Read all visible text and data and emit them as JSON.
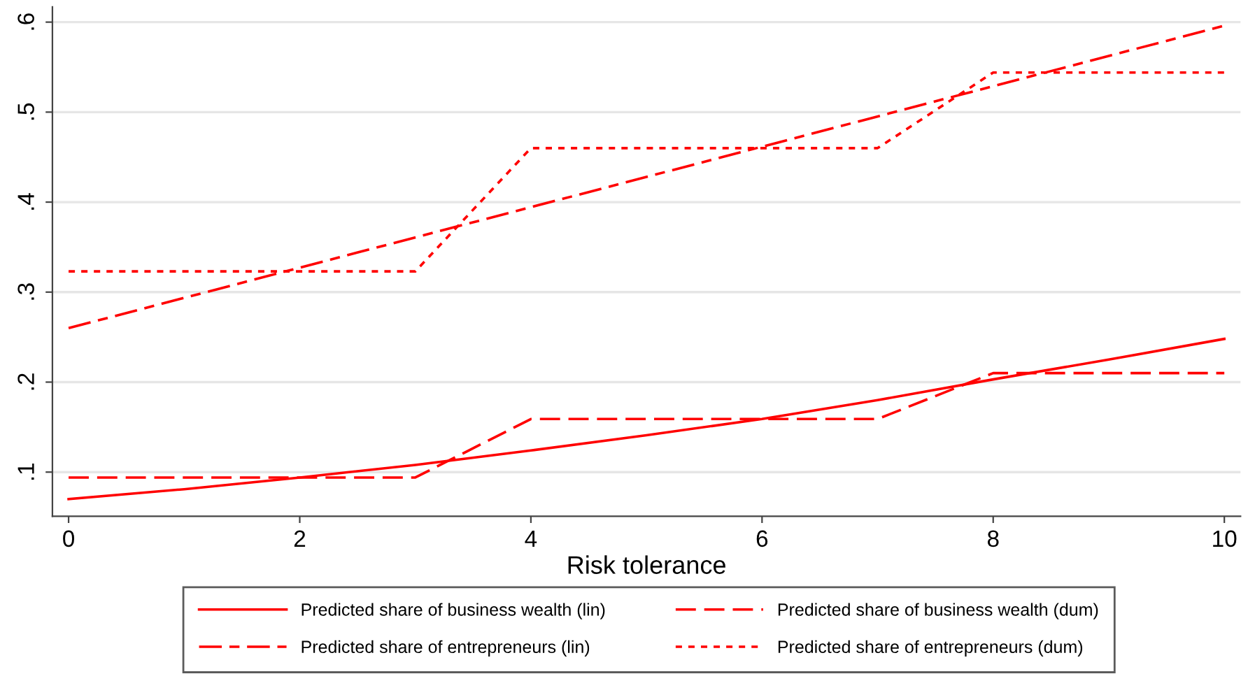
{
  "chart_data": {
    "type": "line",
    "xlabel": "Risk tolerance",
    "xlim": [
      -0.14,
      10.14
    ],
    "xticks": [
      0,
      2,
      4,
      6,
      8,
      10
    ],
    "ylim": [
      0.051,
      0.617
    ],
    "yticks": [
      {
        "value": 0.1,
        "label": ".1"
      },
      {
        "value": 0.2,
        "label": ".2"
      },
      {
        "value": 0.3,
        "label": ".3"
      },
      {
        "value": 0.4,
        "label": ".4"
      },
      {
        "value": 0.5,
        "label": ".5"
      },
      {
        "value": 0.6,
        "label": ".6"
      }
    ],
    "grid": "y",
    "legend": "bottom",
    "marker": "none",
    "series": [
      {
        "name": "Predicted share of business wealth (lin)",
        "color": "#ff0000",
        "line_style": "solid",
        "x": [
          0,
          1,
          2,
          3,
          4,
          5,
          6,
          7,
          8,
          9,
          10
        ],
        "values": [
          0.07,
          0.081,
          0.094,
          0.108,
          0.124,
          0.141,
          0.159,
          0.18,
          0.203,
          0.225,
          0.248
        ]
      },
      {
        "name": "Predicted share of business wealth (dum)",
        "color": "#ff0000",
        "line_style": "dashed",
        "x": [
          0,
          3,
          4,
          7,
          8,
          10
        ],
        "values": [
          0.094,
          0.094,
          0.159,
          0.159,
          0.21,
          0.21
        ]
      },
      {
        "name": "Predicted share of entrepreneurs (lin)",
        "color": "#ff0000",
        "line_style": "dashdot",
        "x": [
          0,
          10
        ],
        "values": [
          0.26,
          0.596
        ]
      },
      {
        "name": "Predicted share of entrepreneurs (dum)",
        "color": "#ff0000",
        "line_style": "dotted",
        "x": [
          0,
          3,
          4,
          7,
          8,
          10
        ],
        "values": [
          0.323,
          0.323,
          0.46,
          0.46,
          0.544,
          0.544
        ]
      }
    ]
  }
}
